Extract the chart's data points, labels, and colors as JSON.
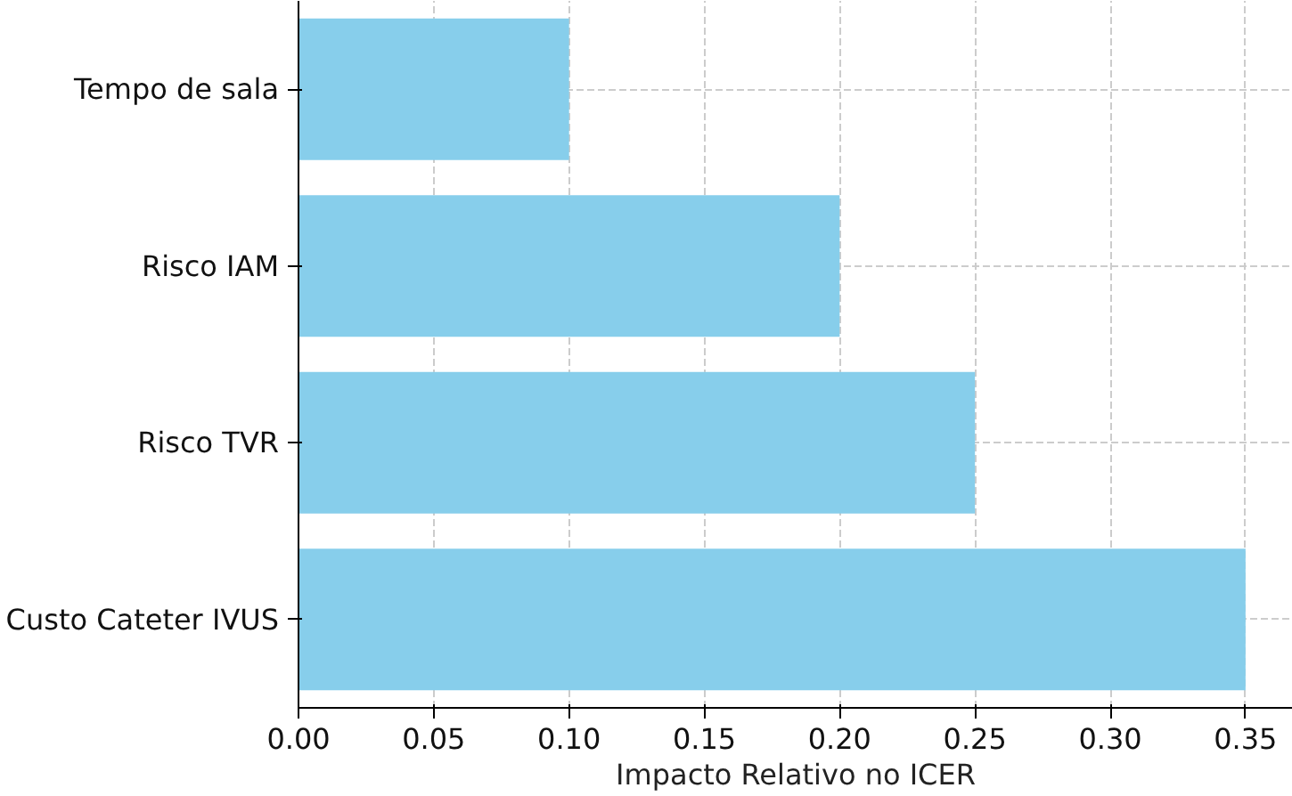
{
  "chart_data": {
    "type": "bar",
    "orientation": "horizontal",
    "xlabel": "Impacto Relativo no ICER",
    "categories": [
      "Tempo de sala",
      "Risco IAM",
      "Risco TVR",
      "Custo Cateter IVUS"
    ],
    "values": [
      0.1,
      0.2,
      0.25,
      0.35
    ],
    "color": "#87ceeb",
    "xlim": [
      0,
      0.3675
    ],
    "xticks": [
      {
        "value": 0,
        "label": "0.00"
      },
      {
        "value": 0.05,
        "label": "0.05"
      },
      {
        "value": 0.1,
        "label": "0.10"
      },
      {
        "value": 0.15,
        "label": "0.15"
      },
      {
        "value": 0.2,
        "label": "0.20"
      },
      {
        "value": 0.25,
        "label": "0.25"
      },
      {
        "value": 0.3,
        "label": "0.30"
      },
      {
        "value": 0.35,
        "label": "0.35"
      }
    ],
    "grid": true
  }
}
